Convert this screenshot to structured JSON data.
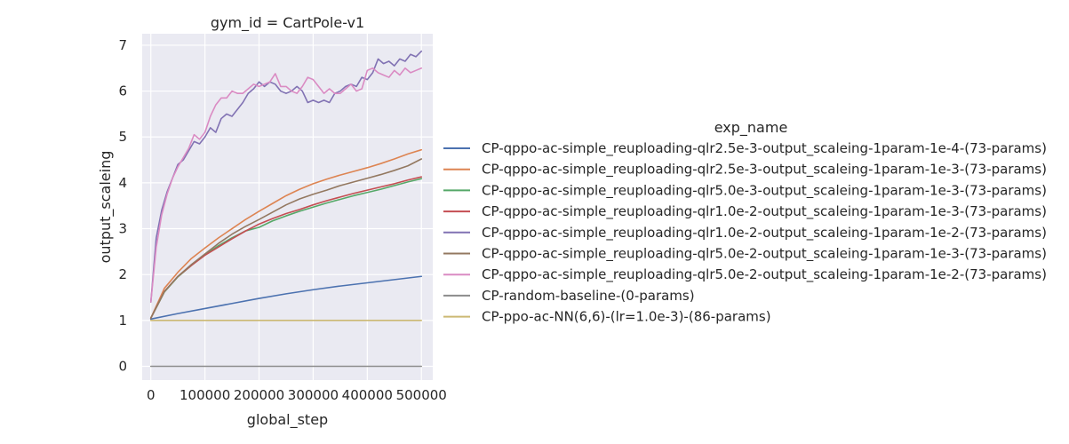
{
  "chart_data": {
    "type": "line",
    "title": "gym_id = CartPole-v1",
    "xlabel": "global_step",
    "ylabel": "output_scaleing",
    "xlim": [
      -16000,
      521000
    ],
    "ylim": [
      -0.3,
      7.25
    ],
    "x_ticks": [
      0,
      100000,
      200000,
      300000,
      400000,
      500000
    ],
    "x_tick_labels": [
      "0",
      "100000",
      "200000",
      "300000",
      "400000",
      "500000"
    ],
    "y_ticks": [
      0,
      1,
      2,
      3,
      4,
      5,
      6,
      7
    ],
    "y_tick_labels": [
      "0",
      "1",
      "2",
      "3",
      "4",
      "5",
      "6",
      "7"
    ],
    "grid": true,
    "background": "#eaeaf2",
    "legend_title": "exp_name",
    "legend_position": "right",
    "series": [
      {
        "name": "CP-qppo-ac-simple_reuploading-qlr2.5e-3-output_scaleing-1param-1e-4-(73-params)",
        "color": "#4c72b0",
        "x": [
          0,
          50000,
          100000,
          150000,
          200000,
          250000,
          300000,
          350000,
          400000,
          450000,
          500000
        ],
        "y": [
          1.03,
          1.15,
          1.26,
          1.37,
          1.48,
          1.58,
          1.67,
          1.75,
          1.82,
          1.89,
          1.96
        ]
      },
      {
        "name": "CP-qppo-ac-simple_reuploading-qlr2.5e-3-output_scaleing-1param-1e-3-(73-params)",
        "color": "#dd8452",
        "x": [
          0,
          25000,
          50000,
          75000,
          100000,
          125000,
          150000,
          175000,
          200000,
          225000,
          250000,
          275000,
          300000,
          325000,
          350000,
          375000,
          400000,
          425000,
          450000,
          475000,
          500000
        ],
        "y": [
          1.05,
          1.7,
          2.05,
          2.35,
          2.58,
          2.8,
          3.0,
          3.2,
          3.38,
          3.55,
          3.72,
          3.86,
          3.98,
          4.08,
          4.17,
          4.25,
          4.33,
          4.42,
          4.52,
          4.63,
          4.72
        ]
      },
      {
        "name": "CP-qppo-ac-simple_reuploading-qlr5.0e-3-output_scaleing-1param-1e-3-(73-params)",
        "color": "#55a868",
        "x": [
          0,
          25000,
          50000,
          75000,
          100000,
          125000,
          150000,
          175000,
          200000,
          225000,
          250000,
          275000,
          300000,
          325000,
          350000,
          375000,
          400000,
          425000,
          450000,
          475000,
          500000
        ],
        "y": [
          1.05,
          1.62,
          1.95,
          2.2,
          2.43,
          2.63,
          2.8,
          2.95,
          3.03,
          3.17,
          3.28,
          3.38,
          3.47,
          3.56,
          3.64,
          3.72,
          3.79,
          3.86,
          3.94,
          4.02,
          4.09
        ]
      },
      {
        "name": "CP-qppo-ac-simple_reuploading-qlr1.0e-2-output_scaleing-1param-1e-3-(73-params)",
        "color": "#c44e52",
        "x": [
          0,
          25000,
          50000,
          75000,
          100000,
          125000,
          150000,
          175000,
          200000,
          225000,
          250000,
          275000,
          300000,
          325000,
          350000,
          375000,
          400000,
          425000,
          450000,
          475000,
          500000
        ],
        "y": [
          1.05,
          1.63,
          1.96,
          2.2,
          2.42,
          2.6,
          2.78,
          2.95,
          3.1,
          3.22,
          3.33,
          3.42,
          3.52,
          3.61,
          3.69,
          3.77,
          3.84,
          3.91,
          3.98,
          4.06,
          4.13
        ]
      },
      {
        "name": "CP-qppo-ac-simple_reuploading-qlr1.0e-2-output_scaleing-1param-1e-2-(73-params)",
        "color": "#8172b3",
        "x": [
          0,
          10000,
          20000,
          30000,
          40000,
          50000,
          60000,
          70000,
          80000,
          90000,
          100000,
          110000,
          120000,
          130000,
          140000,
          150000,
          160000,
          170000,
          180000,
          190000,
          200000,
          210000,
          220000,
          230000,
          240000,
          250000,
          260000,
          270000,
          280000,
          290000,
          300000,
          310000,
          320000,
          330000,
          340000,
          350000,
          360000,
          370000,
          380000,
          390000,
          400000,
          410000,
          420000,
          430000,
          440000,
          450000,
          460000,
          470000,
          480000,
          490000,
          500000
        ],
        "y": [
          1.4,
          2.8,
          3.4,
          3.8,
          4.1,
          4.4,
          4.5,
          4.7,
          4.9,
          4.85,
          5.0,
          5.2,
          5.1,
          5.4,
          5.5,
          5.45,
          5.6,
          5.75,
          5.95,
          6.05,
          6.2,
          6.1,
          6.2,
          6.15,
          6.0,
          5.95,
          6.0,
          6.1,
          6.0,
          5.75,
          5.8,
          5.75,
          5.8,
          5.75,
          5.95,
          6.0,
          6.1,
          6.15,
          6.1,
          6.3,
          6.25,
          6.4,
          6.7,
          6.6,
          6.65,
          6.55,
          6.7,
          6.65,
          6.8,
          6.75,
          6.87
        ]
      },
      {
        "name": "CP-qppo-ac-simple_reuploading-qlr5.0e-2-output_scaleing-1param-1e-3-(73-params)",
        "color": "#937860",
        "x": [
          0,
          25000,
          50000,
          75000,
          100000,
          125000,
          150000,
          175000,
          200000,
          225000,
          250000,
          275000,
          300000,
          325000,
          350000,
          375000,
          400000,
          425000,
          450000,
          475000,
          500000
        ],
        "y": [
          1.05,
          1.63,
          1.96,
          2.22,
          2.45,
          2.68,
          2.88,
          3.05,
          3.2,
          3.36,
          3.52,
          3.65,
          3.75,
          3.84,
          3.94,
          4.02,
          4.1,
          4.18,
          4.27,
          4.37,
          4.52
        ]
      },
      {
        "name": "CP-qppo-ac-simple_reuploading-qlr5.0e-2-output_scaleing-1param-1e-2-(73-params)",
        "color": "#da8bc3",
        "x": [
          0,
          10000,
          20000,
          30000,
          40000,
          50000,
          60000,
          70000,
          80000,
          90000,
          100000,
          110000,
          120000,
          130000,
          140000,
          150000,
          160000,
          170000,
          180000,
          190000,
          200000,
          210000,
          220000,
          230000,
          240000,
          250000,
          260000,
          270000,
          280000,
          290000,
          300000,
          310000,
          320000,
          330000,
          340000,
          350000,
          360000,
          370000,
          380000,
          390000,
          400000,
          410000,
          420000,
          430000,
          440000,
          450000,
          460000,
          470000,
          480000,
          490000,
          500000
        ],
        "y": [
          1.4,
          2.6,
          3.3,
          3.75,
          4.1,
          4.35,
          4.55,
          4.75,
          5.05,
          4.95,
          5.1,
          5.45,
          5.7,
          5.85,
          5.85,
          6.0,
          5.95,
          5.95,
          6.05,
          6.15,
          6.1,
          6.15,
          6.2,
          6.38,
          6.1,
          6.1,
          6.0,
          5.95,
          6.1,
          6.3,
          6.25,
          6.1,
          5.95,
          6.05,
          5.95,
          5.95,
          6.05,
          6.15,
          6.0,
          6.05,
          6.45,
          6.5,
          6.4,
          6.35,
          6.3,
          6.45,
          6.35,
          6.5,
          6.4,
          6.45,
          6.5
        ]
      },
      {
        "name": "CP-random-baseline-(0-params)",
        "color": "#8c8c8c",
        "x": [
          0,
          500000
        ],
        "y": [
          0,
          0
        ]
      },
      {
        "name": "CP-ppo-ac-NN(6,6)-(lr=1.0e-3)-(86-params)",
        "color": "#ccb974",
        "x": [
          0,
          500000
        ],
        "y": [
          1,
          1
        ]
      }
    ]
  }
}
